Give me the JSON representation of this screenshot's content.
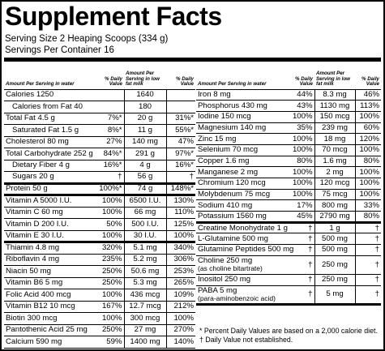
{
  "header": {
    "title": "Supplement Facts",
    "serving_size": "Serving Size 2 Heaping Scoops (334 g)",
    "servings_per_container": "Servings Per Container 16"
  },
  "left_table": {
    "columns": [
      "Amount Per Serving in water",
      "% Daily Value",
      "Amount Per Serving in low fat milk",
      "% Daily Value"
    ],
    "rows": [
      [
        "Calories 1250",
        null,
        "1640",
        null
      ],
      [
        "Calories from Fat 40",
        null,
        "180",
        null
      ],
      [
        "Total Fat 4.5 g",
        "7%*",
        "20 g",
        "31%*"
      ],
      [
        "Saturated Fat 1.5 g",
        "8%*",
        "11 g",
        "55%*"
      ],
      [
        "Cholesterol 80 mg",
        "27%",
        "140 mg",
        "47%"
      ],
      [
        "Total Carbohydrate 252 g",
        "84%*",
        "291 g",
        "97%*"
      ],
      [
        "Dietary Fiber 4 g",
        "16%*",
        "4 g",
        "16%*"
      ],
      [
        "Sugars 20 g",
        "†",
        "56 g",
        "†"
      ],
      [
        "Protein 50 g",
        "100%*",
        "74 g",
        "148%*"
      ],
      [
        "Vitamin A 5000 I.U.",
        "100%",
        "6500 I.U.",
        "130%"
      ],
      [
        "Vitamin C 60 mg",
        "100%",
        "66 mg",
        "110%"
      ],
      [
        "Vitamin D 200 I.U.",
        "50%",
        "500 I.U.",
        "125%"
      ],
      [
        "Vitamin E 30 I.U.",
        "100%",
        "30 I.U.",
        "100%"
      ],
      [
        "Thiamin 4.8 mg",
        "320%",
        "5.1 mg",
        "340%"
      ],
      [
        "Riboflavin 4 mg",
        "235%",
        "5.2 mg",
        "306%"
      ],
      [
        "Niacin 50 mg",
        "250%",
        "50.6 mg",
        "253%"
      ],
      [
        "Vitamin B6 5 mg",
        "250%",
        "5.3 mg",
        "265%"
      ],
      [
        "Folic Acid 400 mcg",
        "100%",
        "436 mcg",
        "109%"
      ],
      [
        "Vitamin B12 10 mcg",
        "167%",
        "12.7 mcg",
        "212%"
      ],
      [
        "Biotin 300 mcg",
        "100%",
        "300 mcg",
        "100%"
      ],
      [
        "Pantothenic Acid 25 mg",
        "250%",
        "27 mg",
        "270%"
      ],
      [
        "Calcium 590 mg",
        "59%",
        "1400 mg",
        "140%"
      ]
    ]
  },
  "right_table": {
    "columns": [
      "Amount Per Serving in water",
      "% Daily Value",
      "Amount Per Serving in low fat milk",
      "% Daily Value"
    ],
    "rows": [
      [
        "Iron 8 mg",
        "44%",
        "8.3 mg",
        "46%"
      ],
      [
        "Phosphorus 430 mg",
        "43%",
        "1130 mg",
        "113%"
      ],
      [
        "Iodine 150 mcg",
        "100%",
        "150 mcg",
        "100%"
      ],
      [
        "Magnesium 140 mg",
        "35%",
        "239 mg",
        "60%"
      ],
      [
        "Zinc 15 mg",
        "100%",
        "18 mg",
        "120%"
      ],
      [
        "Selenium 70 mcg",
        "100%",
        "70 mcg",
        "100%"
      ],
      [
        "Copper 1.6 mg",
        "80%",
        "1.6 mg",
        "80%"
      ],
      [
        "Manganese 2 mg",
        "100%",
        "2 mg",
        "100%"
      ],
      [
        "Chromium 120 mcg",
        "100%",
        "120 mcg",
        "100%"
      ],
      [
        "Molybdenum 75 mcg",
        "100%",
        "75 mcg",
        "100%"
      ],
      [
        "Sodium 410 mg",
        "17%",
        "800 mg",
        "33%"
      ],
      [
        "Potassium 1560 mg",
        "45%",
        "2790 mg",
        "80%"
      ],
      [
        "Creatine Monohydrate 1 g",
        "†",
        "1 g",
        "†"
      ],
      [
        "L-Glutamine 500 mg",
        "†",
        "500 mg",
        "†"
      ],
      [
        "Glutamine Peptides 500 mg",
        "†",
        "500 mg",
        "†"
      ],
      [
        [
          "Choline 250 mg",
          "(as choline bitartrate)"
        ],
        "†",
        "250 mg",
        "†"
      ],
      [
        "Inositol 250 mg",
        "†",
        "250 mg",
        "†"
      ],
      [
        [
          "PABA 5 mg",
          "(para-aminobenzoic acid)"
        ],
        "†",
        "5 mg",
        "†"
      ]
    ]
  },
  "footnotes": [
    "* Percent Daily Values are based on a 2,000 calorie diet.",
    "† Daily Value not established."
  ]
}
